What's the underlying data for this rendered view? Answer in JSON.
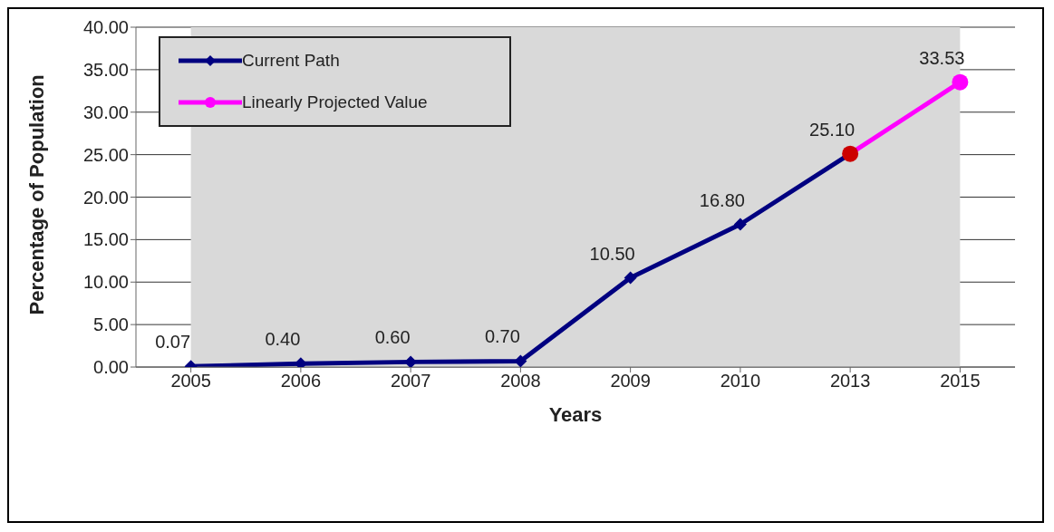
{
  "chart_data": {
    "type": "line",
    "xlabel": "Years",
    "ylabel": "Percentage of Population",
    "categories": [
      "2005",
      "2006",
      "2007",
      "2008",
      "2009",
      "2010",
      "2013",
      "2015"
    ],
    "series": [
      {
        "name": "Current Path",
        "color": "#000080",
        "marker": "diamond",
        "values": [
          0.07,
          0.4,
          0.6,
          0.7,
          10.5,
          16.8,
          25.1,
          null
        ],
        "value_labels": [
          "0.07",
          "0.40",
          "0.60",
          "0.70",
          "10.50",
          "16.80",
          "25.10",
          null
        ]
      },
      {
        "name": "Linearly Projected Value",
        "color": "#ff00ff",
        "marker": "circle",
        "values": [
          null,
          null,
          null,
          null,
          null,
          null,
          25.1,
          33.53
        ],
        "colors": [
          null,
          null,
          null,
          null,
          null,
          null,
          "#cc0000",
          "#ff00ff"
        ],
        "value_labels": [
          null,
          null,
          null,
          null,
          null,
          null,
          null,
          "33.53"
        ]
      }
    ],
    "ylim": [
      0,
      40
    ],
    "yticks": [
      {
        "value": 0,
        "label": "0.00"
      },
      {
        "value": 5,
        "label": "5.00"
      },
      {
        "value": 10,
        "label": "10.00"
      },
      {
        "value": 15,
        "label": "15.00"
      },
      {
        "value": 20,
        "label": "20.00"
      },
      {
        "value": 25,
        "label": "25.00"
      },
      {
        "value": 30,
        "label": "30.00"
      },
      {
        "value": 35,
        "label": "35.00"
      },
      {
        "value": 40,
        "label": "40.00"
      }
    ],
    "grid": "y",
    "legend": "top left"
  }
}
